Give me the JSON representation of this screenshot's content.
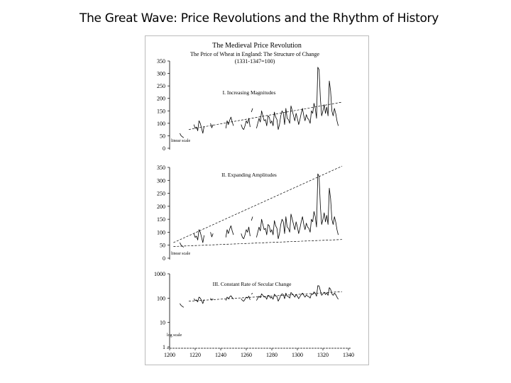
{
  "page_title": "The Great Wave: Price Revolutions and the Rhythm of History",
  "figure": {
    "title": "The Medieval Price Revolution",
    "subtitle": "The Price of Wheat in England: The Structure of Change",
    "base": "(1331-1347=100)"
  },
  "chart_data": [
    {
      "type": "line",
      "title": "I. Increasing Magnitudes",
      "scale_note": "linear scale",
      "yscale": "linear",
      "ylim": [
        0,
        350
      ],
      "yticks": [
        0,
        50,
        100,
        150,
        200,
        250,
        300,
        350
      ],
      "xlim": [
        1200,
        1340
      ],
      "series": [
        {
          "x": [
            1208,
            1209,
            1211
          ],
          "values": [
            60,
            50,
            42
          ]
        },
        {
          "x": [
            1219,
            1220,
            1221,
            1222,
            1223,
            1224,
            1225,
            1226,
            1227
          ],
          "values": [
            95,
            80,
            85,
            70,
            110,
            100,
            80,
            60,
            88
          ]
        },
        {
          "x": [
            1232,
            1233,
            1234
          ],
          "values": [
            100,
            82,
            95
          ]
        },
        {
          "x": [
            1244,
            1245,
            1246,
            1247,
            1248,
            1249,
            1250
          ],
          "values": [
            80,
            110,
            95,
            112,
            125,
            105,
            90
          ]
        },
        {
          "x": [
            1256,
            1257,
            1258,
            1259,
            1260,
            1261,
            1262,
            1263
          ],
          "values": [
            95,
            80,
            75,
            90,
            110,
            100,
            120,
            85
          ]
        },
        {
          "x": [
            1264,
            1265
          ],
          "values": [
            145,
            160
          ]
        },
        {
          "x": [
            1268,
            1269,
            1270,
            1271,
            1272,
            1273,
            1274,
            1275,
            1276,
            1277,
            1278,
            1279,
            1280,
            1281,
            1282,
            1283,
            1284,
            1285,
            1286,
            1287,
            1288,
            1289,
            1290,
            1291,
            1292,
            1293,
            1294,
            1295,
            1296,
            1297,
            1298,
            1299,
            1300,
            1301,
            1302,
            1303,
            1304,
            1305,
            1306,
            1307,
            1308,
            1309,
            1310,
            1311,
            1312,
            1313,
            1314,
            1315,
            1316,
            1317,
            1318,
            1319,
            1320,
            1321,
            1322,
            1323,
            1324,
            1325,
            1326,
            1327,
            1328,
            1329,
            1330,
            1331,
            1332
          ],
          "values": [
            80,
            100,
            120,
            105,
            150,
            130,
            110,
            115,
            90,
            130,
            125,
            100,
            110,
            90,
            145,
            125,
            115,
            75,
            95,
            130,
            150,
            140,
            95,
            160,
            120,
            115,
            100,
            170,
            150,
            130,
            110,
            140,
            120,
            95,
            115,
            140,
            160,
            130,
            110,
            135,
            120,
            115,
            100,
            150,
            140,
            180,
            160,
            120,
            325,
            315,
            200,
            130,
            150,
            175,
            140,
            165,
            130,
            270,
            230,
            150,
            130,
            160,
            140,
            110,
            90
          ]
        }
      ],
      "trend": [
        {
          "x": [
            1215,
            1335
          ],
          "values": [
            75,
            185
          ]
        }
      ]
    },
    {
      "type": "line",
      "title": "II. Expanding Amplitudes",
      "scale_note": "linear scale",
      "yscale": "linear",
      "ylim": [
        0,
        350
      ],
      "yticks": [
        0,
        50,
        100,
        150,
        200,
        250,
        300,
        350
      ],
      "xlim": [
        1200,
        1340
      ],
      "series": [
        {
          "x": [
            1208,
            1209,
            1211
          ],
          "values": [
            60,
            50,
            42
          ]
        },
        {
          "x": [
            1219,
            1220,
            1221,
            1222,
            1223,
            1224,
            1225,
            1226,
            1227
          ],
          "values": [
            95,
            80,
            85,
            70,
            110,
            100,
            80,
            60,
            88
          ]
        },
        {
          "x": [
            1232,
            1233,
            1234
          ],
          "values": [
            100,
            82,
            95
          ]
        },
        {
          "x": [
            1244,
            1245,
            1246,
            1247,
            1248,
            1249,
            1250
          ],
          "values": [
            80,
            110,
            95,
            112,
            125,
            105,
            90
          ]
        },
        {
          "x": [
            1256,
            1257,
            1258,
            1259,
            1260,
            1261,
            1262,
            1263
          ],
          "values": [
            95,
            80,
            75,
            90,
            110,
            100,
            120,
            85
          ]
        },
        {
          "x": [
            1264,
            1265
          ],
          "values": [
            145,
            160
          ]
        },
        {
          "x": [
            1268,
            1269,
            1270,
            1271,
            1272,
            1273,
            1274,
            1275,
            1276,
            1277,
            1278,
            1279,
            1280,
            1281,
            1282,
            1283,
            1284,
            1285,
            1286,
            1287,
            1288,
            1289,
            1290,
            1291,
            1292,
            1293,
            1294,
            1295,
            1296,
            1297,
            1298,
            1299,
            1300,
            1301,
            1302,
            1303,
            1304,
            1305,
            1306,
            1307,
            1308,
            1309,
            1310,
            1311,
            1312,
            1313,
            1314,
            1315,
            1316,
            1317,
            1318,
            1319,
            1320,
            1321,
            1322,
            1323,
            1324,
            1325,
            1326,
            1327,
            1328,
            1329,
            1330,
            1331,
            1332
          ],
          "values": [
            80,
            100,
            120,
            105,
            150,
            130,
            110,
            115,
            90,
            130,
            125,
            100,
            110,
            90,
            145,
            125,
            115,
            75,
            95,
            130,
            150,
            140,
            95,
            160,
            120,
            115,
            100,
            170,
            150,
            130,
            110,
            140,
            120,
            95,
            115,
            140,
            160,
            130,
            110,
            135,
            120,
            115,
            100,
            150,
            140,
            180,
            160,
            120,
            325,
            315,
            200,
            130,
            150,
            175,
            140,
            165,
            130,
            270,
            230,
            150,
            130,
            160,
            140,
            110,
            90
          ]
        }
      ],
      "trend": [
        {
          "x": [
            1203,
            1335
          ],
          "values": [
            60,
            355
          ]
        },
        {
          "x": [
            1203,
            1335
          ],
          "values": [
            45,
            72
          ]
        }
      ]
    },
    {
      "type": "line",
      "title": "III. Constant Rate of Secular Change",
      "scale_note": "log scale",
      "yscale": "log",
      "ylim": [
        1,
        1000
      ],
      "yticks": [
        1,
        10,
        100,
        1000
      ],
      "xlim": [
        1200,
        1340
      ],
      "xticks": [
        1200,
        1220,
        1240,
        1260,
        1280,
        1300,
        1320,
        1340
      ],
      "series": [
        {
          "x": [
            1208,
            1209,
            1211
          ],
          "values": [
            60,
            50,
            42
          ]
        },
        {
          "x": [
            1219,
            1220,
            1221,
            1222,
            1223,
            1224,
            1225,
            1226,
            1227
          ],
          "values": [
            95,
            80,
            85,
            70,
            110,
            100,
            80,
            60,
            88
          ]
        },
        {
          "x": [
            1232,
            1233,
            1234
          ],
          "values": [
            100,
            82,
            95
          ]
        },
        {
          "x": [
            1244,
            1245,
            1246,
            1247,
            1248,
            1249,
            1250
          ],
          "values": [
            80,
            110,
            95,
            112,
            125,
            105,
            90
          ]
        },
        {
          "x": [
            1256,
            1257,
            1258,
            1259,
            1260,
            1261,
            1262,
            1263
          ],
          "values": [
            95,
            80,
            75,
            90,
            110,
            100,
            120,
            85
          ]
        },
        {
          "x": [
            1264,
            1265
          ],
          "values": [
            145,
            160
          ]
        },
        {
          "x": [
            1268,
            1269,
            1270,
            1271,
            1272,
            1273,
            1274,
            1275,
            1276,
            1277,
            1278,
            1279,
            1280,
            1281,
            1282,
            1283,
            1284,
            1285,
            1286,
            1287,
            1288,
            1289,
            1290,
            1291,
            1292,
            1293,
            1294,
            1295,
            1296,
            1297,
            1298,
            1299,
            1300,
            1301,
            1302,
            1303,
            1304,
            1305,
            1306,
            1307,
            1308,
            1309,
            1310,
            1311,
            1312,
            1313,
            1314,
            1315,
            1316,
            1317,
            1318,
            1319,
            1320,
            1321,
            1322,
            1323,
            1324,
            1325,
            1326,
            1327,
            1328,
            1329,
            1330,
            1331,
            1332
          ],
          "values": [
            80,
            100,
            120,
            105,
            150,
            130,
            110,
            115,
            90,
            130,
            125,
            100,
            110,
            90,
            145,
            125,
            115,
            75,
            95,
            130,
            150,
            140,
            95,
            160,
            120,
            115,
            100,
            170,
            150,
            130,
            110,
            140,
            120,
            95,
            115,
            140,
            160,
            130,
            110,
            135,
            120,
            115,
            100,
            150,
            140,
            180,
            160,
            120,
            325,
            315,
            200,
            130,
            150,
            175,
            140,
            165,
            130,
            270,
            230,
            150,
            130,
            160,
            140,
            110,
            90
          ]
        }
      ],
      "trend": [
        {
          "x": [
            1215,
            1335
          ],
          "values": [
            75,
            185
          ]
        }
      ]
    }
  ]
}
